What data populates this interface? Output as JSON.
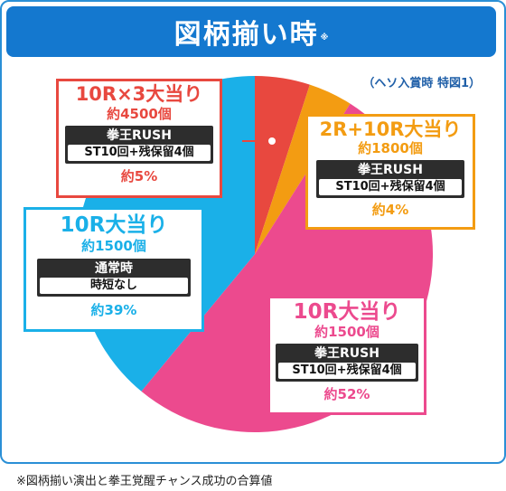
{
  "header": {
    "title": "図柄揃い時",
    "title_mark": "※"
  },
  "subtitle_note": "（ヘソ入賞時 特図1）",
  "footnote": "※図柄揃い演出と拳王覚醒チャンス成功の合算値",
  "colors": {
    "banner": "#1478cf",
    "red": "#e8483f",
    "orange": "#f39c12",
    "pink": "#ec4a8e",
    "cyan": "#1ab0e8"
  },
  "chart_data": {
    "type": "pie",
    "title": "図柄揃い時",
    "note": "（ヘソ入賞時 特図1）",
    "slices": [
      {
        "key": "red",
        "label": "10R×3大当り",
        "payout": "約4500個",
        "mode": "拳王RUSH",
        "mode_detail": "ST10回+残保留4個",
        "percent_label": "約5%",
        "value": 5,
        "color": "#e8483f"
      },
      {
        "key": "orange",
        "label": "2R+10R大当り",
        "payout": "約1800個",
        "mode": "拳王RUSH",
        "mode_detail": "ST10回+残保留4個",
        "percent_label": "約4%",
        "value": 4,
        "color": "#f39c12"
      },
      {
        "key": "pink",
        "label": "10R大当り",
        "payout": "約1500個",
        "mode": "拳王RUSH",
        "mode_detail": "ST10回+残保留4個",
        "percent_label": "約52%",
        "value": 52,
        "color": "#ec4a8e"
      },
      {
        "key": "cyan",
        "label": "10R大当り",
        "payout": "約1500個",
        "mode": "通常時",
        "mode_detail": "時短なし",
        "percent_label": "約39%",
        "value": 39,
        "color": "#1ab0e8"
      }
    ]
  }
}
